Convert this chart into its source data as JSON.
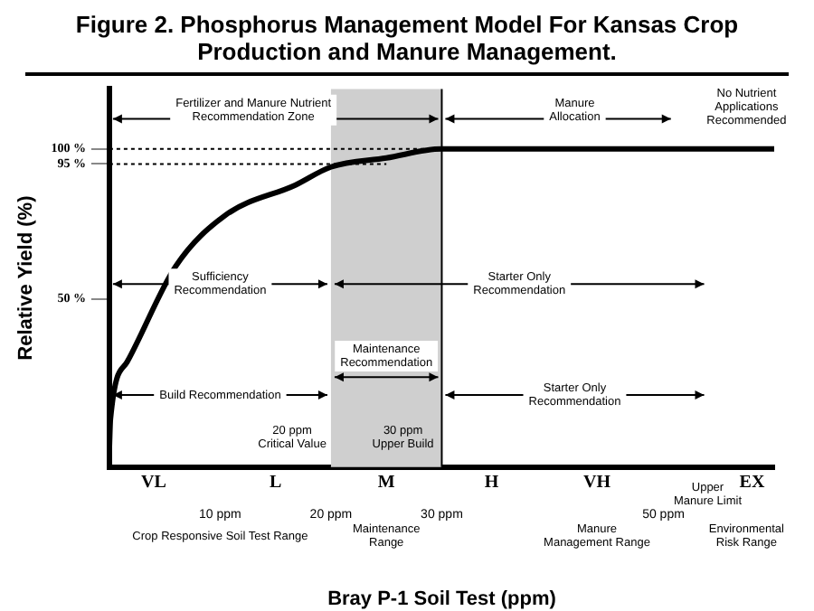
{
  "chart_data": {
    "type": "line",
    "title": "Figure 2.  Phosphorus Management Model For Kansas Crop Production and Manure Management.",
    "xlabel": "Bray P-1 Soil Test (ppm)",
    "ylabel": "Relative Yield (%)",
    "x": [
      0,
      0.1,
      1.6,
      6,
      10.5,
      16.8,
      20,
      25,
      30,
      60
    ],
    "series": [
      {
        "color": "#000000",
        "values": [
          0,
          10,
          29,
          61,
          78,
          88,
          94,
          97,
          100,
          100
        ]
      }
    ],
    "xlim": [
      0,
      60
    ],
    "xticks": [
      {
        "value": 10,
        "label": "10 ppm"
      },
      {
        "value": 20,
        "label": "20 ppm"
      },
      {
        "value": 30,
        "label": "30 ppm"
      },
      {
        "value": 50,
        "label": "50 ppm"
      }
    ],
    "ylim": [
      -6,
      120
    ],
    "yticks": [
      {
        "value": 50,
        "label": "50 %"
      },
      {
        "value": 95,
        "label": "95 %"
      },
      {
        "value": 100,
        "label": "100 %"
      }
    ],
    "bands": [
      {
        "axis": "x",
        "from": 20,
        "to": 30,
        "color": "#cfcfcf"
      }
    ],
    "ref_lines": [
      {
        "axis": "y",
        "value": 95,
        "line_style": "dotted"
      },
      {
        "axis": "y",
        "value": 100,
        "line_style": "dotted"
      },
      {
        "axis": "x",
        "value": 30,
        "line_style": "solid"
      }
    ],
    "annotations": [
      "Fertilizer and Manure Nutrient Recommendation Zone",
      "Manure Allocation",
      "No Nutrient Applications Recommended",
      "Sufficiency Recommendation",
      "Starter Only Recommendation",
      "Maintenance Recommendation",
      "Build Recommendation",
      "Starter Only Recommendation",
      "20 ppm Critical Value",
      "30 ppm Upper Build",
      "VL",
      "L",
      "M",
      "H",
      "VH",
      "EX",
      "Upper Manure Limit",
      "Crop Responsive Soil Test Range",
      "Maintenance Range",
      "Manure Management Range",
      "Environmental Risk Range"
    ],
    "grid": false,
    "legend": false,
    "marker": "none",
    "line_style": "solid"
  }
}
